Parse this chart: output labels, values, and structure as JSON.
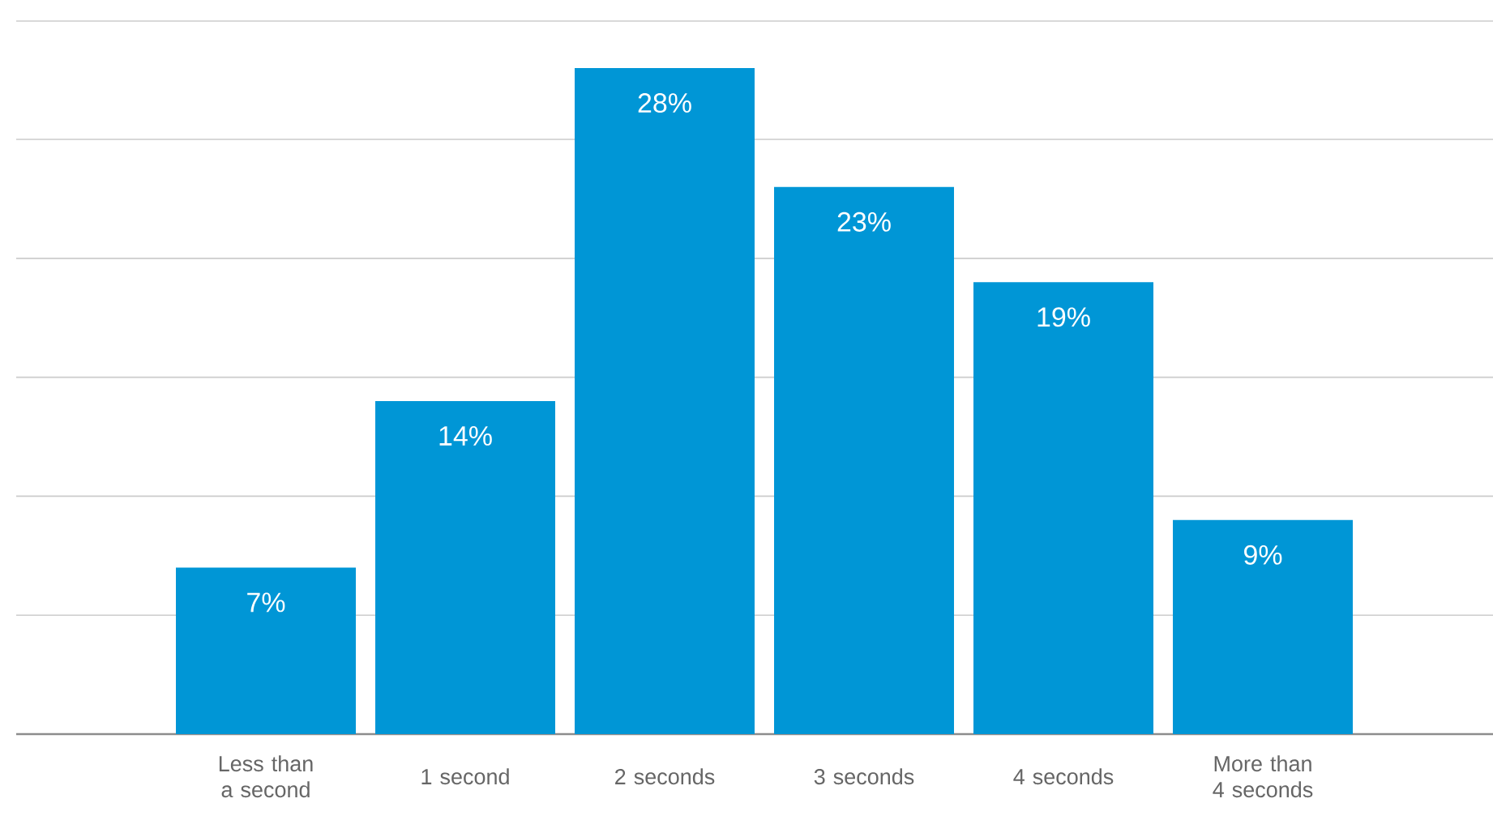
{
  "chart_data": {
    "type": "bar",
    "categories": [
      "Less than a second",
      "1 second",
      "2 seconds",
      "3 seconds",
      "4 seconds",
      "More than 4 seconds"
    ],
    "values": [
      7,
      14,
      28,
      23,
      19,
      9
    ],
    "value_labels": [
      "7%",
      "14%",
      "28%",
      "23%",
      "19%",
      "9%"
    ],
    "color": "#0096d6",
    "grid": "y",
    "tick_labels": "x"
  }
}
